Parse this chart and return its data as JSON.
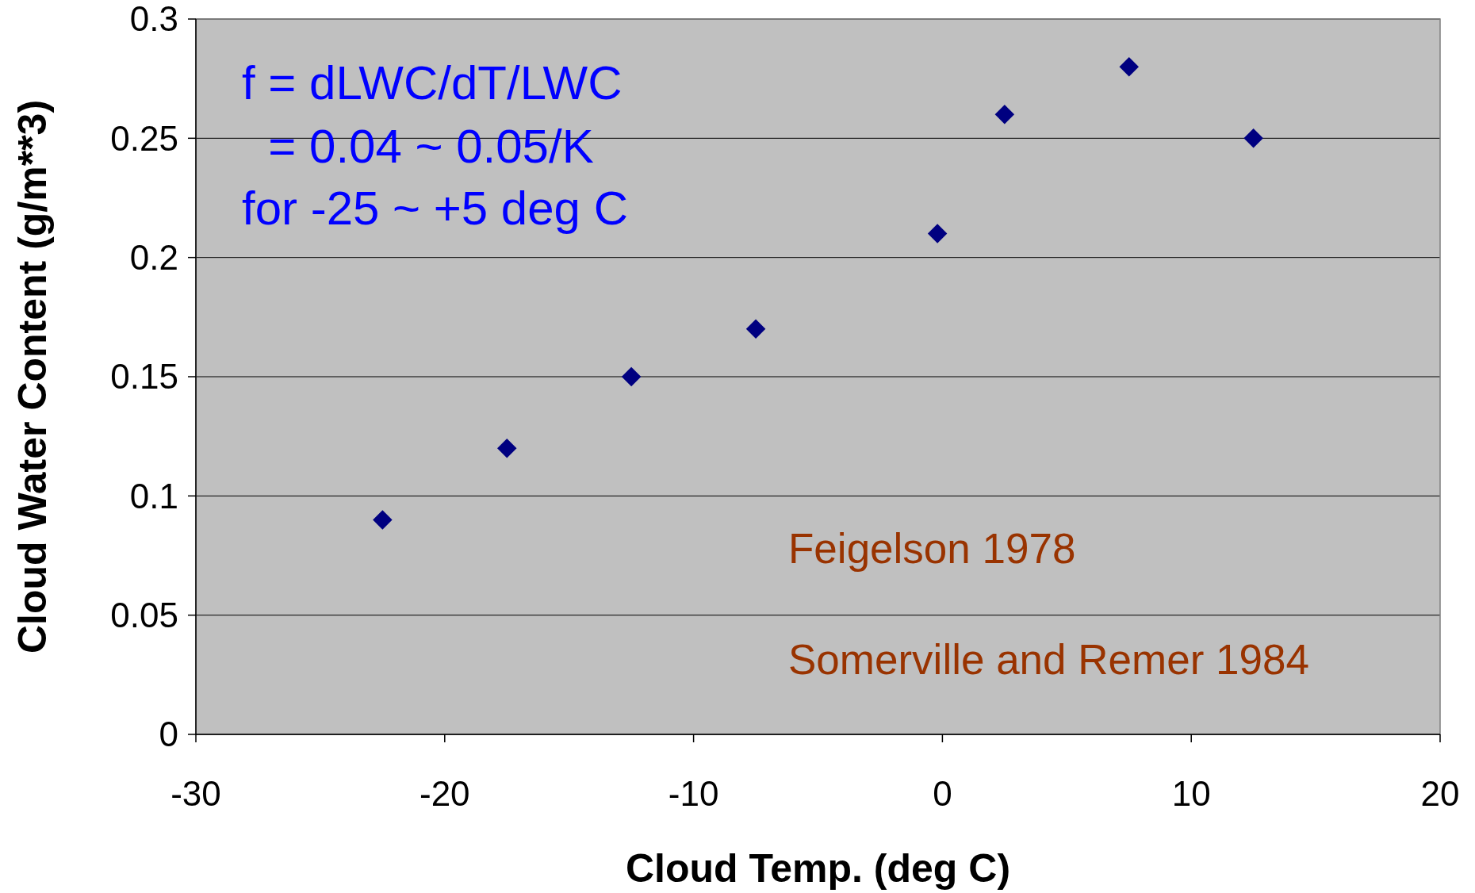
{
  "chart_data": {
    "type": "scatter",
    "xlabel": "Cloud Temp. (deg C)",
    "ylabel": "Cloud Water Content (g/m**3)",
    "x": [
      -22.5,
      -17.5,
      -12.5,
      -7.5,
      -0.2,
      2.5,
      7.5,
      12.5
    ],
    "series": [
      {
        "color": "#000080",
        "values": [
          0.09,
          0.12,
          0.15,
          0.17,
          0.21,
          0.26,
          0.28,
          0.25
        ]
      }
    ],
    "xlim": [
      -30,
      20
    ],
    "xticks": [
      -30,
      -20,
      -10,
      0,
      10,
      20
    ],
    "ylim": [
      0,
      0.3
    ],
    "yticks": [
      0,
      0.05,
      0.1,
      0.15,
      0.2,
      0.25,
      0.3
    ],
    "grid": "y",
    "marker": "diamond",
    "annotations": [
      "f = dLWC/dT/LWC",
      "  = 0.04 ~ 0.05/K",
      "for -25 ~ +5 deg C",
      "Feigelson 1978",
      "Somerville and Remer 1984"
    ]
  }
}
